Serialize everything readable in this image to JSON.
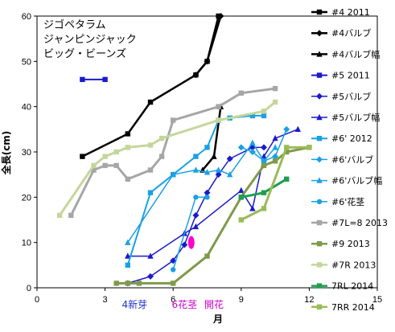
{
  "chart_data": {
    "type": "line",
    "xlabel": "月",
    "ylabel": "全長(cm)",
    "xlim": [
      0,
      15
    ],
    "ylim": [
      0,
      60
    ],
    "xticks": [
      0,
      3,
      6,
      9,
      12,
      15
    ],
    "yticks": [
      0,
      10,
      20,
      30,
      40,
      50,
      60
    ],
    "grid": false,
    "legend_position": "right",
    "annotations": [
      "ジゴペタラム",
      "ジャンピンジャック",
      "ビッグ・ビーンズ"
    ],
    "x_annotations": [
      {
        "text": "4新芽",
        "x": 4.3,
        "color": "#2233cc"
      },
      {
        "text": "6花茎",
        "x": 6.5,
        "color": "#cc00cc"
      },
      {
        "text": "開花",
        "x": 7.8,
        "color": "#cc00cc"
      }
    ],
    "series": [
      {
        "name": "#4 2011",
        "color": "#000000",
        "marker": "square",
        "width": 2.5,
        "points": [
          [
            2,
            29
          ],
          [
            4,
            34
          ],
          [
            5,
            41
          ],
          [
            7,
            47
          ],
          [
            7.5,
            50
          ],
          [
            8,
            60
          ]
        ]
      },
      {
        "name": "#4バルブ",
        "color": "#000000",
        "marker": "diamond",
        "width": 2.5,
        "points": [
          [
            7,
            47
          ],
          [
            7.5,
            50
          ],
          [
            8.1,
            60
          ]
        ]
      },
      {
        "name": "#4バルブ幅",
        "color": "#000000",
        "marker": "triangle",
        "width": 2.5,
        "points": [
          [
            7.3,
            26
          ],
          [
            7.8,
            29
          ],
          [
            8.1,
            40
          ]
        ]
      },
      {
        "name": "#5 2011",
        "color": "#1a1acc",
        "marker": "square",
        "width": 2,
        "points": [
          [
            2,
            46
          ],
          [
            3,
            46
          ]
        ]
      },
      {
        "name": "#5バルブ",
        "color": "#1a1acc",
        "marker": "diamond",
        "width": 1.5,
        "points": [
          [
            4,
            1
          ],
          [
            5,
            2.5
          ],
          [
            6,
            6
          ],
          [
            6.5,
            9.5
          ],
          [
            7,
            16
          ],
          [
            7.5,
            21
          ],
          [
            8,
            25
          ],
          [
            8.5,
            28.5
          ],
          [
            9.5,
            31
          ],
          [
            10,
            31
          ]
        ]
      },
      {
        "name": "#5バルブ幅",
        "color": "#1a1acc",
        "marker": "triangle",
        "width": 1.5,
        "points": [
          [
            4,
            7
          ],
          [
            5,
            7
          ],
          [
            6.5,
            12
          ],
          [
            7,
            13.5
          ],
          [
            9,
            21.5
          ],
          [
            9.5,
            17.5
          ],
          [
            10,
            29
          ],
          [
            10.5,
            33
          ],
          [
            11.5,
            35
          ]
        ]
      },
      {
        "name": "#6' 2012",
        "color": "#1aa0e6",
        "marker": "square",
        "width": 2,
        "points": [
          [
            4,
            5
          ],
          [
            5,
            21
          ],
          [
            6,
            25
          ],
          [
            7,
            29
          ],
          [
            7.5,
            31
          ],
          [
            8,
            37
          ],
          [
            8.5,
            37.5
          ],
          [
            9.5,
            38
          ],
          [
            10,
            38
          ]
        ]
      },
      {
        "name": "#6'バルブ",
        "color": "#1aa0e6",
        "marker": "diamond",
        "width": 1.5,
        "points": [
          [
            9,
            31
          ],
          [
            9.5,
            30
          ],
          [
            10,
            28
          ],
          [
            10.5,
            29
          ],
          [
            11,
            35
          ]
        ]
      },
      {
        "name": "#6'バルブ幅",
        "color": "#1aa0e6",
        "marker": "triangle",
        "width": 1.5,
        "points": [
          [
            4,
            10
          ],
          [
            6,
            25
          ],
          [
            7,
            26
          ],
          [
            7.5,
            25.5
          ],
          [
            8,
            26
          ],
          [
            8.5,
            25
          ],
          [
            9.5,
            32
          ],
          [
            10,
            28
          ],
          [
            10.5,
            31
          ]
        ]
      },
      {
        "name": "#6'花茎",
        "color": "#1aa0e6",
        "marker": "circle",
        "width": 1.5,
        "points": [
          [
            6,
            4
          ],
          [
            7,
            20
          ],
          [
            7.5,
            20
          ]
        ]
      },
      {
        "name": "#7L=8 2013",
        "color": "#a6a6a6",
        "marker": "square",
        "width": 3,
        "points": [
          [
            1.5,
            16
          ],
          [
            2.5,
            26
          ],
          [
            3,
            27
          ],
          [
            3.5,
            27
          ],
          [
            4,
            24
          ],
          [
            5,
            26
          ],
          [
            5.5,
            29
          ],
          [
            6,
            37
          ],
          [
            8,
            40
          ],
          [
            9,
            43
          ],
          [
            10.5,
            44
          ]
        ]
      },
      {
        "name": "#9 2013",
        "color": "#7f9a4a",
        "marker": "square",
        "width": 3,
        "points": [
          [
            3.5,
            1
          ],
          [
            4,
            1
          ],
          [
            4.5,
            1
          ],
          [
            6,
            1
          ],
          [
            7.5,
            7
          ],
          [
            9,
            20
          ],
          [
            10,
            27
          ],
          [
            10.5,
            28
          ],
          [
            11,
            30
          ],
          [
            12,
            31
          ]
        ]
      },
      {
        "name": "#7R 2013",
        "color": "#c4d79b",
        "marker": "square",
        "width": 3,
        "points": [
          [
            1,
            16
          ],
          [
            2.5,
            27
          ],
          [
            3,
            29
          ],
          [
            3.5,
            30
          ],
          [
            4,
            31
          ],
          [
            5,
            31.5
          ],
          [
            5.5,
            33
          ],
          [
            8,
            37
          ],
          [
            10,
            39
          ],
          [
            10.5,
            41
          ]
        ]
      },
      {
        "name": "7RL 2014",
        "color": "#1f9e50",
        "marker": "square",
        "width": 3,
        "points": [
          [
            9,
            20
          ],
          [
            10,
            21
          ],
          [
            11,
            24
          ]
        ]
      },
      {
        "name": "7RR 2014",
        "color": "#9bbb59",
        "marker": "square",
        "width": 3,
        "points": [
          [
            9,
            15
          ],
          [
            10,
            17.5
          ],
          [
            11,
            31
          ],
          [
            12,
            31
          ]
        ]
      }
    ],
    "highlight_marker": {
      "x": 6.8,
      "y": 10,
      "color": "#ff00cc"
    }
  }
}
